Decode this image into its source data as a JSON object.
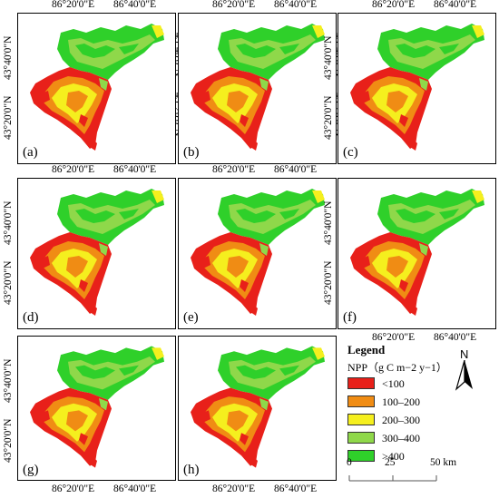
{
  "coords": {
    "lon1": "86°20'0\"E",
    "lon2": "86°40'0\"E",
    "lat1": "43°40'0\"N",
    "lat2": "43°20'0\"N"
  },
  "panels": [
    {
      "label": "(a)"
    },
    {
      "label": "(b)"
    },
    {
      "label": "(c)"
    },
    {
      "label": "(d)"
    },
    {
      "label": "(e)"
    },
    {
      "label": "(f)"
    },
    {
      "label": "(g)"
    },
    {
      "label": "(h)"
    }
  ],
  "legend": {
    "title": "Legend",
    "unit": "NPP（g C m−2 y−1）",
    "items": [
      {
        "label": "<100",
        "color": "#e8201a"
      },
      {
        "label": "100–200",
        "color": "#f08c14"
      },
      {
        "label": "200–300",
        "color": "#f5ef1e"
      },
      {
        "label": "300–400",
        "color": "#8fd84a"
      },
      {
        "label": ">400",
        "color": "#2fd02a"
      }
    ]
  },
  "north_arrow": {
    "label": "N"
  },
  "scale": {
    "ticks": [
      "0",
      "25",
      "50 km"
    ]
  }
}
